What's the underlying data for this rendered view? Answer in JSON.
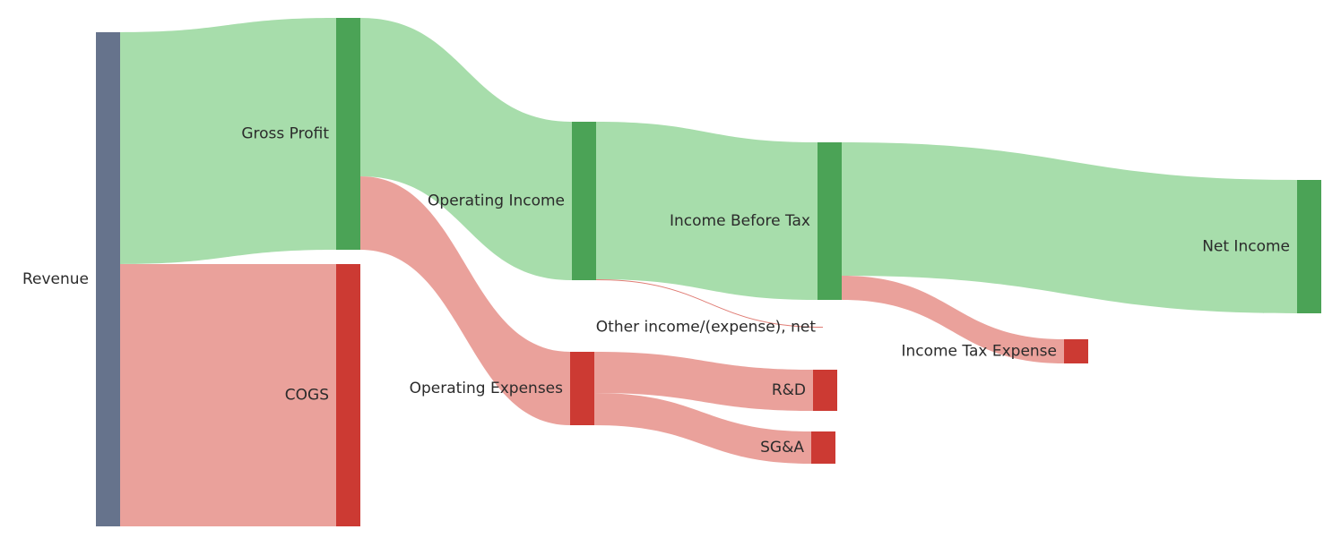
{
  "chart_data": {
    "type": "sankey",
    "title": "",
    "units": "",
    "nodes": [
      {
        "id": "revenue",
        "label": "Revenue",
        "kind": "source"
      },
      {
        "id": "gross_profit",
        "label": "Gross Profit",
        "kind": "profit"
      },
      {
        "id": "cogs",
        "label": "COGS",
        "kind": "cost"
      },
      {
        "id": "operating_income",
        "label": "Operating Income",
        "kind": "profit"
      },
      {
        "id": "operating_expenses",
        "label": "Operating Expenses",
        "kind": "cost"
      },
      {
        "id": "income_before_tax",
        "label": "Income Before Tax",
        "kind": "profit"
      },
      {
        "id": "other_income",
        "label": "Other income/(expense), net",
        "kind": "other"
      },
      {
        "id": "rnd",
        "label": "R&D",
        "kind": "cost"
      },
      {
        "id": "sga",
        "label": "SG&A",
        "kind": "cost"
      },
      {
        "id": "net_income",
        "label": "Net Income",
        "kind": "profit"
      },
      {
        "id": "income_tax",
        "label": "Income Tax Expense",
        "kind": "cost"
      }
    ],
    "links": [
      {
        "source": "revenue",
        "target": "gross_profit",
        "value": 259,
        "kind": "profit"
      },
      {
        "source": "revenue",
        "target": "cogs",
        "value": 293,
        "kind": "cost"
      },
      {
        "source": "gross_profit",
        "target": "operating_income",
        "value": 177,
        "kind": "profit"
      },
      {
        "source": "gross_profit",
        "target": "operating_expenses",
        "value": 82,
        "kind": "cost"
      },
      {
        "source": "operating_income",
        "target": "income_before_tax",
        "value": 176,
        "kind": "profit"
      },
      {
        "source": "operating_income",
        "target": "other_income",
        "value": 1,
        "kind": "cost"
      },
      {
        "source": "operating_expenses",
        "target": "rnd",
        "value": 46,
        "kind": "cost"
      },
      {
        "source": "operating_expenses",
        "target": "sga",
        "value": 36,
        "kind": "cost"
      },
      {
        "source": "income_before_tax",
        "target": "net_income",
        "value": 149,
        "kind": "profit"
      },
      {
        "source": "income_before_tax",
        "target": "income_tax",
        "value": 27,
        "kind": "cost"
      }
    ],
    "colors": {
      "source_node": "#66738c",
      "profit_node": "#4ba356",
      "cost_node": "#cc3a33",
      "profit_link": "#a7ddab",
      "cost_link": "#eaa19b",
      "other_link": "#e07c74"
    }
  }
}
